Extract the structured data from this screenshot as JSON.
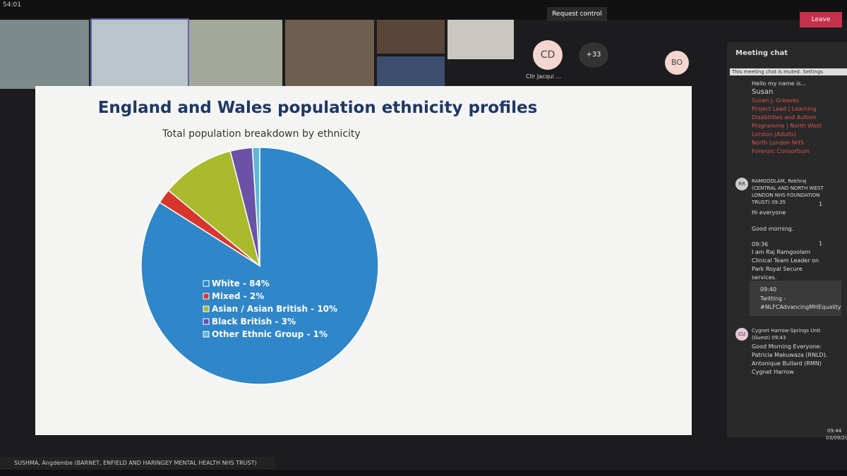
{
  "meeting": {
    "timer": "54:01",
    "request_control": "Request control",
    "leave": "Leave",
    "tiles": {
      "avatar_cd": "CD",
      "more": "+33",
      "name_cd": "Cllr Jacqui ...",
      "avatar_bo": "BO"
    },
    "presenter": "SUSHMA, Angdembe (BARNET, ENFIELD AND HARINGEY MENTAL HEALTH NHS TRUST)"
  },
  "chat": {
    "title": "Meeting chat",
    "notice": "This meeting chat is muted. Settings",
    "messages": [
      {
        "lines": [
          "Hello my name is...",
          "Susan",
          "Susan J. Greaves",
          "Project Lead | Learning Disabilities and Autism Programme | North West London (Adults)",
          "North London NHS Forensic Consortium"
        ]
      },
      {
        "avatar": "RR",
        "sender": "RAMGOOLAM, Rekhraj (CENTRAL AND NORTH WEST LONDON NHS FOUNDATION TRUST)",
        "time": "09:35",
        "reaction": "1",
        "lines": [
          "Hi everyone",
          "Good morning."
        ]
      },
      {
        "time": "09:36",
        "reaction": "1",
        "lines": [
          "I am Raj Ramgoolam Clinical Team Leader on Park Royal Secure services."
        ]
      },
      {
        "time": "09:40",
        "lines": [
          "Twitting - #NLFCAdvancingMHEquality"
        ]
      },
      {
        "avatar": "CU",
        "sender": "Cygnet Harrow-Springs Unit (Guest)",
        "time": "09:43",
        "lines": [
          "Good Morning Everyone: Patricia Makuwaza (RNLD). Antonique Bullard (RMN) Cygnet Harrow"
        ]
      }
    ]
  },
  "taskbar": {
    "time": "09:44",
    "date": "03/09/20"
  },
  "chart_data": {
    "type": "pie",
    "title": "England and Wales population ethnicity profiles",
    "subtitle": "Total population breakdown by ethnicity",
    "categories": [
      "White - 84%",
      "Mixed - 2%",
      "Asian / Asian British - 10%",
      "Black British - 3%",
      "Other Ethnic Group - 1%"
    ],
    "values": [
      84,
      2,
      10,
      3,
      1
    ],
    "colors": [
      "#2f86c9",
      "#d8362c",
      "#a9bb2c",
      "#6a52a6",
      "#5cb9d6"
    ]
  }
}
